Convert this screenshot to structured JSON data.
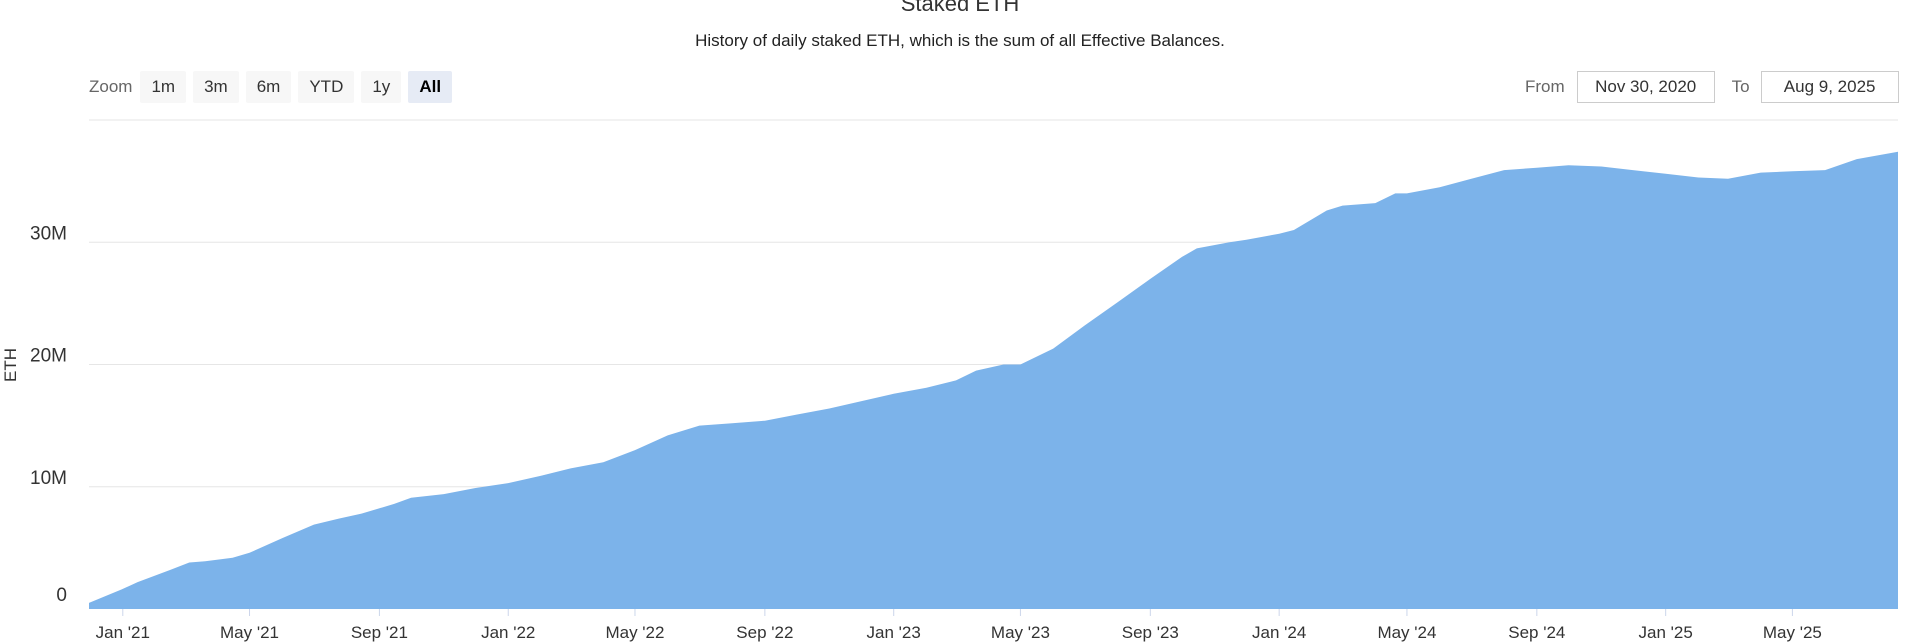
{
  "chart_data": {
    "type": "area",
    "title": "Staked ETH",
    "subtitle": "History of daily staked ETH, which is the sum of all Effective Balances.",
    "ylabel": "ETH",
    "xlabel": "",
    "x_range": [
      "2020-11-30",
      "2025-08-09"
    ],
    "ylim": [
      0,
      40000000
    ],
    "y_ticks": [
      0,
      10000000,
      20000000,
      30000000
    ],
    "y_tick_labels": [
      "0",
      "10M",
      "20M",
      "30M"
    ],
    "x_ticks": [
      "2021-01-01",
      "2021-05-01",
      "2021-09-01",
      "2022-01-01",
      "2022-05-01",
      "2022-09-01",
      "2023-01-01",
      "2023-05-01",
      "2023-09-01",
      "2024-01-01",
      "2024-05-01",
      "2024-09-01",
      "2025-01-01",
      "2025-05-01"
    ],
    "x_tick_labels": [
      "Jan '21",
      "May '21",
      "Sep '21",
      "Jan '22",
      "May '22",
      "Sep '22",
      "Jan '23",
      "May '23",
      "Sep '23",
      "Jan '24",
      "May '24",
      "Sep '24",
      "Jan '25",
      "May '25"
    ],
    "grid": true,
    "color": "#7cb3ea",
    "series": [
      {
        "x": [
          "2020-11-30",
          "2020-12-31",
          "2021-01-15",
          "2021-02-15",
          "2021-03-05",
          "2021-03-20",
          "2021-04-15",
          "2021-05-01",
          "2021-06-01",
          "2021-07-01",
          "2021-07-25",
          "2021-08-15",
          "2021-09-15",
          "2021-10-01",
          "2021-11-01",
          "2021-12-01",
          "2022-01-01",
          "2022-02-01",
          "2022-03-01",
          "2022-04-01",
          "2022-05-01",
          "2022-06-01",
          "2022-07-01",
          "2022-08-01",
          "2022-09-01",
          "2022-10-01",
          "2022-11-01",
          "2022-12-01",
          "2023-01-01",
          "2023-02-01",
          "2023-03-01",
          "2023-03-20",
          "2023-04-15",
          "2023-05-01",
          "2023-06-01",
          "2023-07-01",
          "2023-08-01",
          "2023-09-01",
          "2023-10-01",
          "2023-10-15",
          "2023-11-15",
          "2023-12-01",
          "2024-01-01",
          "2024-01-15",
          "2024-02-15",
          "2024-03-01",
          "2024-04-01",
          "2024-04-20",
          "2024-05-01",
          "2024-06-01",
          "2024-07-01",
          "2024-08-01",
          "2024-09-01",
          "2024-10-01",
          "2024-11-01",
          "2024-12-01",
          "2025-01-01",
          "2025-02-01",
          "2025-03-01",
          "2025-04-01",
          "2025-05-01",
          "2025-06-01",
          "2025-07-01",
          "2025-08-09"
        ],
        "values": [
          500000,
          1600000,
          2200000,
          3200000,
          3800000,
          3900000,
          4200000,
          4600000,
          5800000,
          6900000,
          7400000,
          7800000,
          8600000,
          9100000,
          9400000,
          9900000,
          10300000,
          10900000,
          11500000,
          12000000,
          13000000,
          14200000,
          15000000,
          15200000,
          15400000,
          15900000,
          16400000,
          17000000,
          17600000,
          18100000,
          18700000,
          19500000,
          20000000,
          20000000,
          21300000,
          23200000,
          25100000,
          27000000,
          28800000,
          29500000,
          30000000,
          30200000,
          30700000,
          31000000,
          32600000,
          33000000,
          33200000,
          34000000,
          34000000,
          34500000,
          35200000,
          35900000,
          36100000,
          36300000,
          36200000,
          35900000,
          35600000,
          35300000,
          35200000,
          35700000,
          35800000,
          35900000,
          36800000,
          37400000
        ]
      }
    ]
  },
  "controls": {
    "zoom_label": "Zoom",
    "zoom_buttons": [
      "1m",
      "3m",
      "6m",
      "YTD",
      "1y",
      "All"
    ],
    "from_label": "From",
    "from_value": "Nov 30, 2020",
    "to_label": "To",
    "to_value": "Aug 9, 2025"
  }
}
